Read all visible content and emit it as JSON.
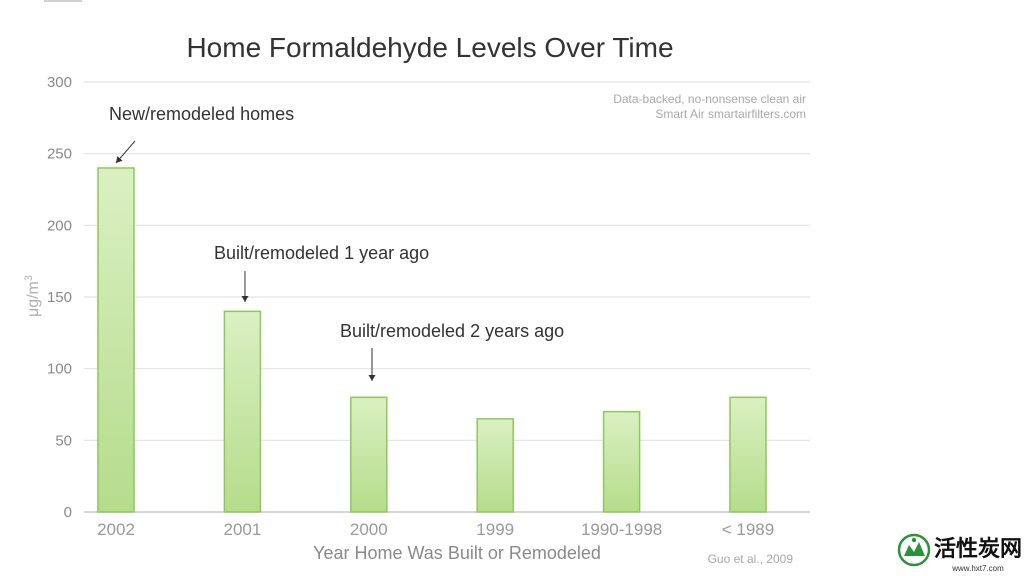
{
  "chart_data": {
    "type": "bar",
    "title": "Home Formaldehyde Levels Over Time",
    "xlabel": "Year Home Was Built or Remodeled",
    "ylabel": "μg/m",
    "ylabel_sup": "3",
    "categories": [
      "2002",
      "2001",
      "2000",
      "1999",
      "1990-1998",
      "< 1989"
    ],
    "values": [
      240,
      140,
      80,
      65,
      70,
      80
    ],
    "ylim": [
      0,
      300
    ],
    "yticks": [
      "0",
      "50",
      "100",
      "150",
      "200",
      "250",
      "300"
    ],
    "grid": true,
    "bar_fill_top": "#daf0c2",
    "bar_fill_bottom": "#b5dc8b",
    "bar_stroke": "#8cc95a",
    "annotations": [
      {
        "text": "New/remodeled homes",
        "category": 0
      },
      {
        "text": "Built/remodeled 1 year ago",
        "category": 1
      },
      {
        "text": "Built/remodeled 2 years ago",
        "category": 2
      }
    ],
    "source_note_line1": "Data-backed, no-nonsense clean air",
    "source_note_line2": "Smart Air smartairfilters.com",
    "citation": "Guo et al., 2009"
  },
  "watermark": {
    "brand": "活性炭网",
    "url": "www.hxt7.com"
  }
}
